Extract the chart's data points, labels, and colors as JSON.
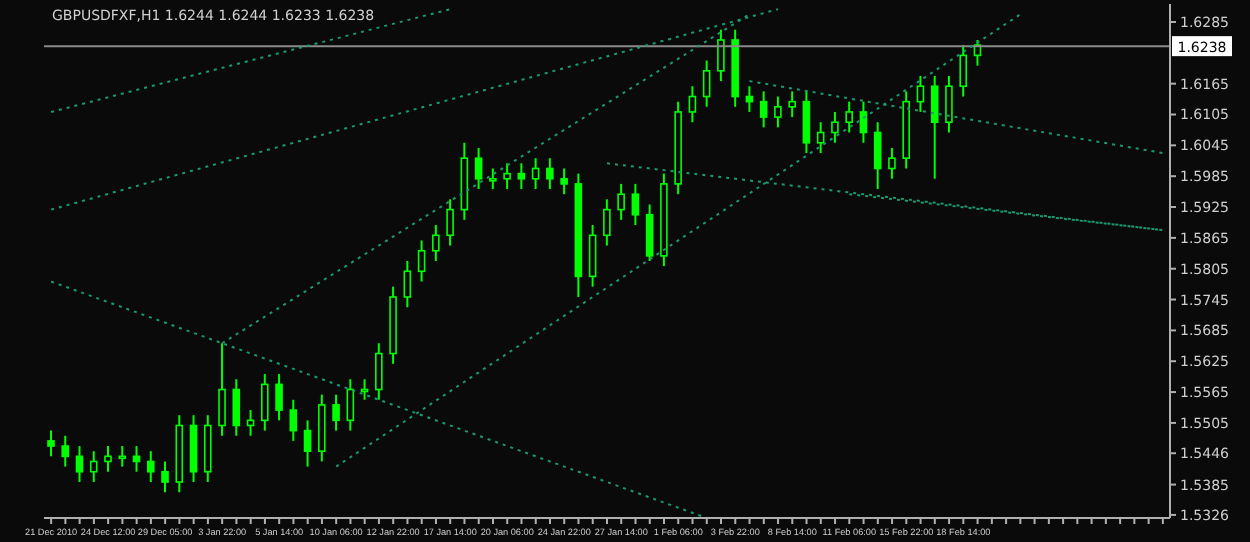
{
  "chart_data": {
    "type": "candlestick",
    "title": "GBPUSDFXF,H1 1.6244 1.6244 1.6233 1.6238",
    "color": "#00ff00",
    "categories": [
      "21 Dec 2010",
      null,
      null,
      null,
      "24 Dec 12:00",
      null,
      null,
      null,
      "29 Dec 05:00",
      null,
      null,
      null,
      "3 Jan 22:00",
      null,
      null,
      null,
      "5 Jan 14:00",
      null,
      null,
      null,
      "10 Jan 06:00",
      null,
      null,
      null,
      "12 Jan 22:00",
      null,
      null,
      null,
      "17 Jan 14:00",
      null,
      null,
      null,
      "20 Jan 06:00",
      null,
      null,
      null,
      "24 Jan 22:00",
      null,
      null,
      null,
      "27 Jan 14:00",
      null,
      null,
      null,
      "1 Feb 06:00",
      null,
      null,
      null,
      "3 Feb 22:00",
      null,
      null,
      null,
      "8 Feb 14:00",
      null,
      null,
      null,
      "11 Feb 06:00",
      null,
      null,
      null,
      "15 Feb 22:00",
      null,
      null,
      null,
      "18 Feb 14:00",
      null,
      null,
      null,
      null,
      null,
      null,
      null,
      null,
      null,
      null,
      null,
      null,
      null,
      null
    ],
    "ohlc": [
      [
        1.547,
        1.549,
        1.544,
        1.546
      ],
      [
        1.546,
        1.548,
        1.542,
        1.544
      ],
      [
        1.544,
        1.546,
        1.539,
        1.541
      ],
      [
        1.541,
        1.545,
        1.539,
        1.543
      ],
      [
        1.543,
        1.546,
        1.541,
        1.544
      ],
      [
        1.544,
        1.546,
        1.542,
        1.544
      ],
      [
        1.544,
        1.546,
        1.541,
        1.543
      ],
      [
        1.543,
        1.545,
        1.539,
        1.541
      ],
      [
        1.541,
        1.543,
        1.537,
        1.539
      ],
      [
        1.539,
        1.552,
        1.537,
        1.55
      ],
      [
        1.55,
        1.552,
        1.539,
        1.541
      ],
      [
        1.541,
        1.552,
        1.539,
        1.55
      ],
      [
        1.55,
        1.566,
        1.548,
        1.557
      ],
      [
        1.557,
        1.559,
        1.548,
        1.55
      ],
      [
        1.55,
        1.553,
        1.548,
        1.551
      ],
      [
        1.551,
        1.56,
        1.549,
        1.558
      ],
      [
        1.558,
        1.56,
        1.551,
        1.553
      ],
      [
        1.553,
        1.555,
        1.547,
        1.549
      ],
      [
        1.549,
        1.551,
        1.542,
        1.545
      ],
      [
        1.545,
        1.556,
        1.543,
        1.554
      ],
      [
        1.554,
        1.556,
        1.549,
        1.551
      ],
      [
        1.551,
        1.559,
        1.549,
        1.557
      ],
      [
        1.557,
        1.559,
        1.555,
        1.557
      ],
      [
        1.557,
        1.566,
        1.555,
        1.564
      ],
      [
        1.564,
        1.577,
        1.562,
        1.575
      ],
      [
        1.575,
        1.582,
        1.573,
        1.58
      ],
      [
        1.58,
        1.586,
        1.578,
        1.584
      ],
      [
        1.584,
        1.589,
        1.582,
        1.587
      ],
      [
        1.587,
        1.594,
        1.585,
        1.592
      ],
      [
        1.592,
        1.605,
        1.59,
        1.602
      ],
      [
        1.602,
        1.604,
        1.596,
        1.598
      ],
      [
        1.598,
        1.6,
        1.596,
        1.598
      ],
      [
        1.598,
        1.601,
        1.596,
        1.599
      ],
      [
        1.599,
        1.601,
        1.596,
        1.598
      ],
      [
        1.598,
        1.602,
        1.596,
        1.6
      ],
      [
        1.6,
        1.602,
        1.596,
        1.598
      ],
      [
        1.598,
        1.6,
        1.595,
        1.597
      ],
      [
        1.597,
        1.599,
        1.575,
        1.579
      ],
      [
        1.579,
        1.589,
        1.577,
        1.587
      ],
      [
        1.587,
        1.594,
        1.585,
        1.592
      ],
      [
        1.592,
        1.597,
        1.59,
        1.595
      ],
      [
        1.595,
        1.597,
        1.589,
        1.591
      ],
      [
        1.591,
        1.593,
        1.582,
        1.583
      ],
      [
        1.583,
        1.599,
        1.581,
        1.597
      ],
      [
        1.597,
        1.613,
        1.595,
        1.611
      ],
      [
        1.611,
        1.616,
        1.609,
        1.614
      ],
      [
        1.614,
        1.621,
        1.612,
        1.619
      ],
      [
        1.619,
        1.627,
        1.617,
        1.625
      ],
      [
        1.625,
        1.627,
        1.612,
        1.614
      ],
      [
        1.614,
        1.616,
        1.611,
        1.613
      ],
      [
        1.613,
        1.615,
        1.608,
        1.61
      ],
      [
        1.61,
        1.614,
        1.608,
        1.612
      ],
      [
        1.612,
        1.615,
        1.61,
        1.613
      ],
      [
        1.613,
        1.615,
        1.603,
        1.605
      ],
      [
        1.605,
        1.609,
        1.603,
        1.607
      ],
      [
        1.607,
        1.611,
        1.605,
        1.609
      ],
      [
        1.609,
        1.613,
        1.607,
        1.611
      ],
      [
        1.611,
        1.613,
        1.605,
        1.607
      ],
      [
        1.607,
        1.609,
        1.596,
        1.6
      ],
      [
        1.6,
        1.604,
        1.598,
        1.602
      ],
      [
        1.602,
        1.615,
        1.6,
        1.613
      ],
      [
        1.613,
        1.618,
        1.611,
        1.616
      ],
      [
        1.616,
        1.618,
        1.598,
        1.609
      ],
      [
        1.609,
        1.618,
        1.607,
        1.616
      ],
      [
        1.616,
        1.624,
        1.614,
        1.622
      ],
      [
        1.622,
        1.625,
        1.62,
        1.624
      ],
      null,
      null,
      null,
      null,
      null,
      null,
      null,
      null,
      null,
      null,
      null,
      null,
      null
    ],
    "series": [
      {
        "type": "line",
        "color": "#1a9a6e",
        "line_style": "dotted",
        "values": [
          1.611,
          null,
          null,
          null,
          null,
          null,
          null,
          null,
          null,
          null,
          null,
          null,
          null,
          null,
          null,
          null,
          null,
          null,
          null,
          null,
          null,
          null,
          null,
          null,
          null,
          null,
          null,
          null,
          1.631,
          null,
          null,
          null,
          null,
          null,
          null,
          null,
          null,
          null,
          null,
          null,
          null,
          null,
          null,
          null,
          null,
          null,
          null,
          null,
          null,
          null,
          null,
          null,
          null,
          null,
          null,
          null,
          null,
          null,
          null,
          null,
          null,
          null,
          null,
          null,
          null,
          null,
          null,
          null,
          null,
          null,
          null,
          null,
          null,
          null,
          null,
          null,
          null,
          null,
          null
        ]
      },
      {
        "type": "line",
        "color": "#1a9a6e",
        "line_style": "dotted",
        "values": [
          1.578,
          null,
          null,
          null,
          null,
          null,
          null,
          null,
          null,
          null,
          null,
          null,
          null,
          null,
          null,
          null,
          null,
          null,
          null,
          null,
          null,
          null,
          null,
          null,
          null,
          null,
          null,
          null,
          null,
          null,
          null,
          null,
          null,
          null,
          null,
          null,
          null,
          null,
          null,
          null,
          null,
          null,
          null,
          null,
          null,
          null,
          1.532,
          null,
          null,
          null,
          null,
          null,
          null,
          null,
          null,
          null,
          null,
          null,
          null,
          null,
          null,
          null,
          null,
          null,
          null,
          null,
          null,
          null,
          null,
          null,
          null,
          null,
          null,
          null,
          null,
          null,
          null,
          null,
          null
        ]
      },
      {
        "type": "line",
        "color": "#1a9a6e",
        "line_style": "dotted",
        "values": [
          null,
          null,
          null,
          null,
          null,
          null,
          null,
          null,
          null,
          null,
          null,
          null,
          1.566,
          null,
          null,
          null,
          null,
          null,
          null,
          null,
          null,
          null,
          null,
          null,
          null,
          null,
          null,
          null,
          null,
          null,
          null,
          null,
          null,
          null,
          null,
          null,
          null,
          null,
          null,
          null,
          null,
          null,
          null,
          null,
          null,
          null,
          null,
          null,
          null,
          1.63,
          null,
          null,
          null,
          null,
          null,
          null,
          null,
          null,
          null,
          null,
          null,
          null,
          null,
          null,
          null,
          null,
          null,
          null,
          null,
          null,
          null,
          null,
          null,
          null,
          null,
          null,
          null,
          null,
          null
        ]
      },
      {
        "type": "line",
        "color": "#1a9a6e",
        "line_style": "dotted",
        "values": [
          null,
          null,
          null,
          null,
          null,
          null,
          null,
          null,
          null,
          null,
          null,
          null,
          null,
          null,
          null,
          null,
          null,
          null,
          null,
          null,
          1.542,
          null,
          null,
          null,
          null,
          null,
          null,
          null,
          null,
          null,
          null,
          null,
          null,
          null,
          null,
          null,
          null,
          null,
          null,
          null,
          null,
          null,
          null,
          null,
          null,
          null,
          null,
          null,
          null,
          null,
          null,
          null,
          null,
          null,
          null,
          null,
          null,
          null,
          null,
          null,
          null,
          null,
          null,
          null,
          null,
          null,
          null,
          null,
          1.63,
          null,
          null,
          null,
          null,
          null,
          null,
          null,
          null,
          null,
          null
        ]
      },
      {
        "type": "line",
        "color": "#1a9a6e",
        "line_style": "dotted",
        "values": [
          null,
          null,
          null,
          null,
          null,
          null,
          null,
          null,
          null,
          null,
          null,
          null,
          null,
          null,
          null,
          null,
          null,
          null,
          null,
          null,
          null,
          null,
          null,
          null,
          null,
          null,
          null,
          null,
          null,
          null,
          null,
          null,
          null,
          null,
          null,
          null,
          null,
          null,
          null,
          1.601,
          null,
          null,
          null,
          null,
          null,
          null,
          null,
          null,
          null,
          null,
          null,
          null,
          null,
          null,
          null,
          null,
          null,
          null,
          null,
          null,
          null,
          null,
          null,
          null,
          null,
          null,
          null,
          null,
          null,
          null,
          null,
          null,
          null,
          null,
          null,
          null,
          null,
          null,
          1.588
        ]
      },
      {
        "type": "line",
        "color": "#1a9a6e",
        "line_style": "dotted",
        "values": [
          null,
          null,
          null,
          null,
          null,
          null,
          null,
          null,
          null,
          null,
          null,
          null,
          null,
          null,
          null,
          null,
          null,
          null,
          null,
          null,
          null,
          null,
          null,
          null,
          null,
          null,
          null,
          null,
          null,
          null,
          null,
          null,
          null,
          null,
          null,
          null,
          null,
          null,
          null,
          null,
          null,
          null,
          null,
          null,
          null,
          null,
          null,
          null,
          null,
          1.617,
          null,
          null,
          null,
          null,
          null,
          null,
          null,
          null,
          null,
          null,
          null,
          null,
          null,
          null,
          null,
          null,
          null,
          null,
          null,
          null,
          null,
          null,
          null,
          null,
          null,
          null,
          null,
          null,
          1.603
        ]
      },
      {
        "type": "line",
        "color": "#1a9a6e",
        "line_style": "dotted",
        "values": [
          null,
          null,
          null,
          null,
          null,
          null,
          null,
          null,
          null,
          null,
          null,
          null,
          null,
          null,
          null,
          null,
          null,
          null,
          null,
          null,
          null,
          null,
          null,
          null,
          null,
          null,
          null,
          null,
          null,
          null,
          null,
          null,
          null,
          null,
          null,
          null,
          null,
          null,
          null,
          null,
          null,
          null,
          null,
          null,
          null,
          null,
          null,
          null,
          null,
          null,
          null,
          null,
          null,
          null,
          null,
          null,
          1.595,
          null,
          null,
          null,
          null,
          null,
          null,
          null,
          null,
          null,
          null,
          null,
          null,
          null,
          null,
          null,
          null,
          null,
          null,
          null,
          null,
          null,
          1.588
        ]
      },
      {
        "type": "line",
        "color": "#1a9a6e",
        "line_style": "dotted",
        "values": [
          1.592,
          null,
          null,
          null,
          null,
          null,
          null,
          null,
          null,
          null,
          null,
          null,
          null,
          null,
          null,
          null,
          null,
          null,
          null,
          null,
          null,
          null,
          null,
          null,
          null,
          null,
          null,
          null,
          null,
          null,
          null,
          null,
          null,
          null,
          null,
          null,
          null,
          null,
          null,
          null,
          null,
          null,
          null,
          null,
          null,
          null,
          null,
          null,
          null,
          null,
          null,
          1.631,
          null,
          null,
          null,
          null,
          null,
          null,
          null,
          null,
          null,
          null,
          null,
          null,
          null,
          null,
          null,
          null,
          null,
          null,
          null,
          null,
          null,
          null,
          null,
          null,
          null,
          null,
          null
        ]
      }
    ],
    "ylim": [
      1.532,
      1.632
    ],
    "yticks": [
      1.5326,
      1.5385,
      1.5446,
      1.5505,
      1.5565,
      1.5625,
      1.5685,
      1.5745,
      1.5805,
      1.5865,
      1.5925,
      1.5985,
      1.6045,
      1.6105,
      1.6165,
      1.6285
    ],
    "ref_lines": [
      {
        "axis": "y",
        "value": 1.6238,
        "label": "1.6238",
        "color": "#8a8a8a"
      }
    ]
  }
}
